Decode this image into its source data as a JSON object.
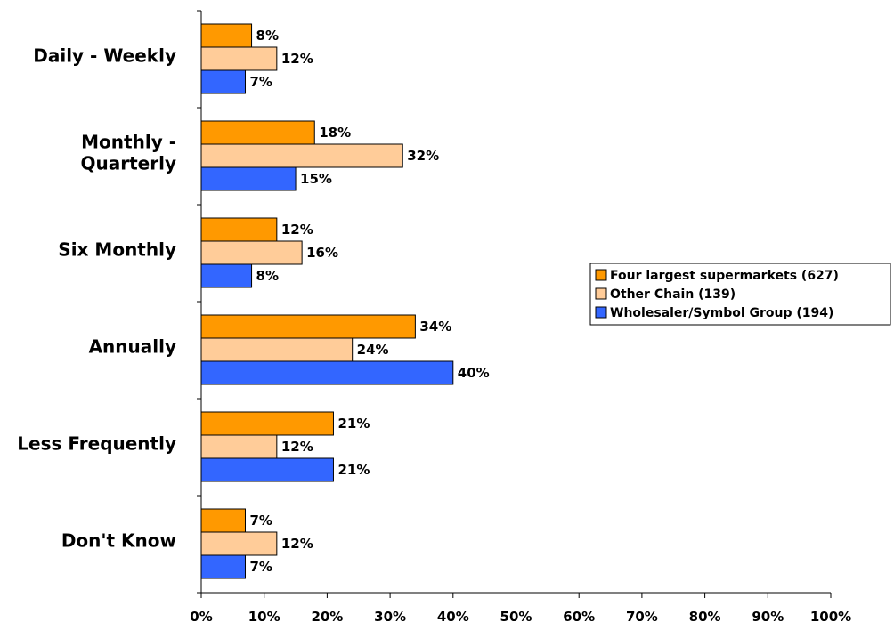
{
  "chart_data": {
    "type": "bar",
    "orientation": "horizontal",
    "categories": [
      [
        "Daily - Weekly"
      ],
      [
        "Monthly -",
        "Quarterly"
      ],
      [
        "Six Monthly"
      ],
      [
        "Annually"
      ],
      [
        "Less Frequently"
      ],
      [
        "Don't Know"
      ]
    ],
    "series": [
      {
        "name": "Four largest supermarkets (627)",
        "color": "#FF9900",
        "values": [
          8,
          18,
          12,
          34,
          21,
          7
        ]
      },
      {
        "name": "Other Chain (139)",
        "color": "#FFCC99",
        "values": [
          12,
          32,
          16,
          24,
          12,
          12
        ]
      },
      {
        "name": "Wholesaler/Symbol Group (194)",
        "color": "#3366FF",
        "values": [
          7,
          15,
          8,
          40,
          21,
          7
        ]
      }
    ],
    "xlim": [
      0,
      100
    ],
    "xticks": [
      "0%",
      "10%",
      "20%",
      "30%",
      "40%",
      "50%",
      "60%",
      "70%",
      "80%",
      "90%",
      "100%"
    ],
    "value_suffix": "%",
    "grid": false,
    "legend": "right"
  }
}
